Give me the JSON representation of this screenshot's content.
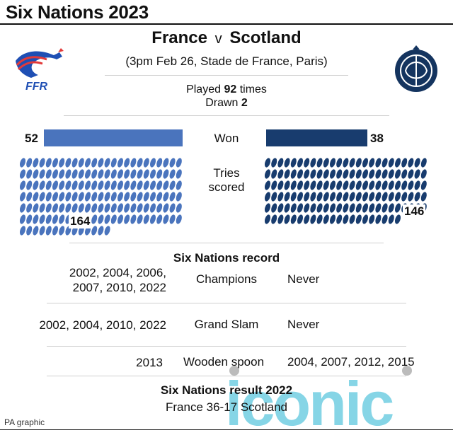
{
  "header": {
    "title": "Six Nations 2023"
  },
  "match": {
    "home": "France",
    "vs": "v",
    "away": "Scotland",
    "details": "(3pm Feb 26, Stade de France, Paris)"
  },
  "logos": {
    "home_text": "FFR"
  },
  "summary": {
    "played_prefix": "Played",
    "played_count": "92",
    "played_suffix": "times",
    "drawn_prefix": "Drawn",
    "drawn_count": "2"
  },
  "won": {
    "label": "Won",
    "home": "52",
    "away": "38"
  },
  "tries": {
    "label_line1": "Tries",
    "label_line2": "scored",
    "home": "164",
    "away": "146"
  },
  "colors": {
    "home": "#4a74bd",
    "away": "#183c6e"
  },
  "record": {
    "heading": "Six Nations record",
    "rows": [
      {
        "left_line1": "2002, 2004, 2006,",
        "left_line2": "2007, 2010, 2022",
        "label": "Champions",
        "right": "Never"
      },
      {
        "left": "2002, 2004, 2010, 2022",
        "label": "Grand Slam",
        "right": "Never"
      },
      {
        "left": "2013",
        "label": "Wooden spoon",
        "right": "2004, 2007, 2012, 2015"
      }
    ]
  },
  "result": {
    "heading": "Six Nations result 2022",
    "text": "France 36-17 Scotland"
  },
  "footer": {
    "credit": "PA graphic"
  },
  "watermark": {
    "text": "iconic"
  }
}
